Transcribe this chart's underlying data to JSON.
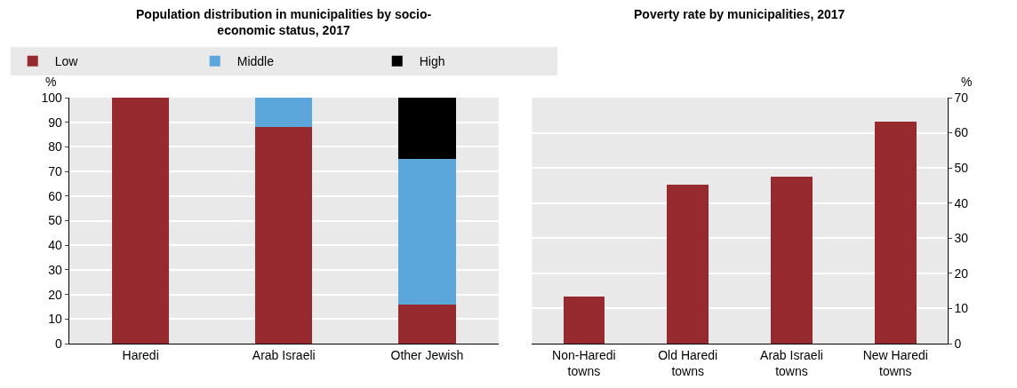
{
  "chart_data": [
    {
      "type": "bar",
      "title": "Population distribution in municipalities by socio-economic status, 2017",
      "ylabel": "%",
      "categories": [
        "Haredi",
        "Arab Israeli",
        "Other Jewish"
      ],
      "stacked": true,
      "ylim": [
        0,
        100
      ],
      "yticks": [
        0,
        10,
        20,
        30,
        40,
        50,
        60,
        70,
        80,
        90,
        100
      ],
      "grid": "y",
      "legend": "top",
      "series": [
        {
          "name": "Low",
          "color": "#962a2f",
          "values": [
            100,
            88,
            16
          ]
        },
        {
          "name": "Middle",
          "color": "#5ba7dc",
          "values": [
            0,
            12,
            59
          ]
        },
        {
          "name": "High",
          "color": "#000000",
          "values": [
            0,
            0,
            25
          ]
        }
      ]
    },
    {
      "type": "bar",
      "title": "Poverty rate by municipalities, 2017",
      "ylabel": "%",
      "categories": [
        "Non-Haredi towns",
        "Old Haredi towns",
        "Arab Israeli towns",
        "New Haredi towns"
      ],
      "ylim": [
        0,
        70
      ],
      "yticks": [
        0,
        10,
        20,
        30,
        40,
        50,
        60,
        70
      ],
      "grid": "y",
      "series": [
        {
          "color": "#962a2f",
          "values": [
            13.5,
            45.2,
            47.5,
            63.2
          ]
        }
      ]
    }
  ]
}
